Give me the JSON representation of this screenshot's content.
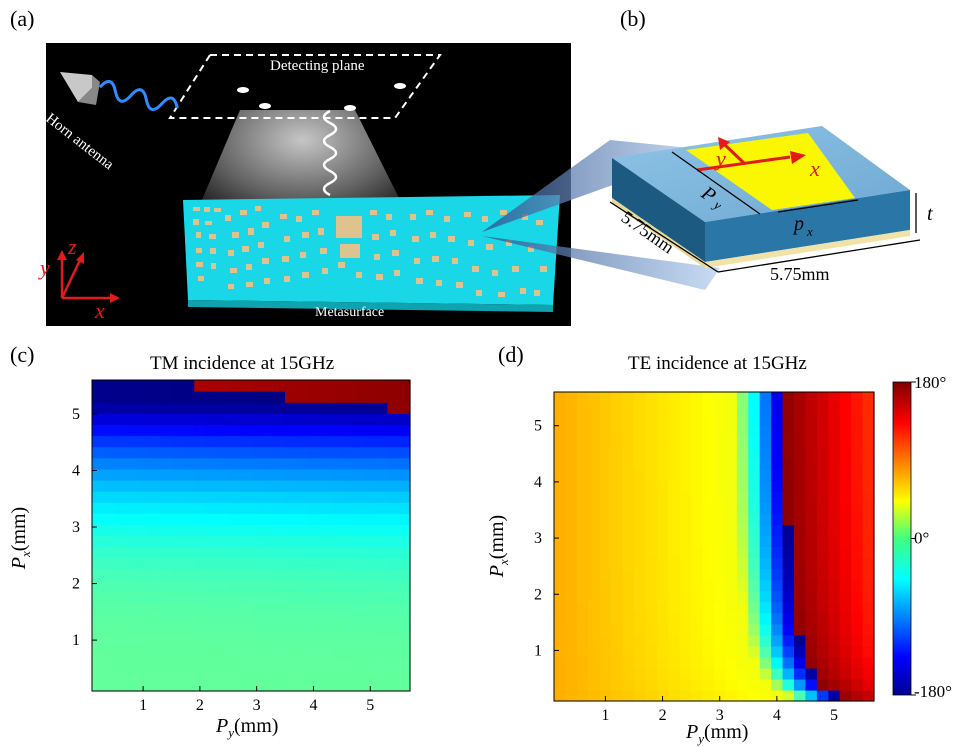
{
  "panels": {
    "a": {
      "label": "(a)",
      "detecting_plane": "Detecting plane",
      "horn_antenna": "Horn antenna",
      "metasurface": "Metasurface",
      "axes": {
        "x": "x",
        "y": "y",
        "z": "z"
      }
    },
    "b": {
      "label": "(b)",
      "py": "P",
      "py_sub": "y",
      "px": "p",
      "px_sub": "x",
      "t": "t",
      "dim_left": "5.75mm",
      "dim_right": "5.75mm",
      "axis_x": "x",
      "axis_y": "y"
    },
    "c": {
      "label": "(c)",
      "title": "TM incidence at 15GHz",
      "x_label_main": "P",
      "x_label_sub": "y",
      "x_label_unit": "(mm)",
      "y_label_main": "P",
      "y_label_sub": "x",
      "y_label_unit": "(mm)",
      "x_ticks": [
        "1",
        "2",
        "3",
        "4",
        "5"
      ],
      "y_ticks": [
        "1",
        "2",
        "3",
        "4",
        "5"
      ]
    },
    "d": {
      "label": "(d)",
      "title": "TE incidence at 15GHz",
      "x_label_main": "P",
      "x_label_sub": "y",
      "x_label_unit": "(mm)",
      "y_label_main": "P",
      "y_label_sub": "x",
      "y_label_unit": "(mm)",
      "x_ticks": [
        "1",
        "2",
        "3",
        "4",
        "5"
      ],
      "y_ticks": [
        "1",
        "2",
        "3",
        "4",
        "5"
      ],
      "colorbar_ticks": [
        "180°",
        "0°",
        "-180°"
      ]
    }
  },
  "chart_data": [
    {
      "type": "heatmap",
      "title": "TM incidence at 15GHz",
      "xlabel": "Py(mm)",
      "ylabel": "Px(mm)",
      "xlim": [
        0.1,
        5.7
      ],
      "ylim": [
        0.1,
        5.6
      ],
      "zlim": [
        -180,
        180
      ],
      "x_ticks": [
        1,
        2,
        3,
        4,
        5
      ],
      "y_ticks": [
        1,
        2,
        3,
        4,
        5
      ],
      "colormap": "jet",
      "grid": false,
      "description_points": [
        {
          "px": 0.5,
          "phase_approx": -5
        },
        {
          "px": 2.0,
          "phase_approx": -20
        },
        {
          "px": 3.5,
          "phase_approx": -55
        },
        {
          "px": 4.5,
          "phase_approx": -150
        },
        {
          "px": 5.4,
          "phase_approx": 180
        }
      ]
    },
    {
      "type": "heatmap",
      "title": "TE incidence at 15GHz",
      "xlabel": "Py(mm)",
      "ylabel": "Px(mm)",
      "xlim": [
        0.1,
        5.7
      ],
      "ylim": [
        0.1,
        5.6
      ],
      "zlim": [
        -180,
        180
      ],
      "x_ticks": [
        1,
        2,
        3,
        4,
        5
      ],
      "y_ticks": [
        1,
        2,
        3,
        4,
        5
      ],
      "colormap": "jet",
      "colorbar_ticks": [
        180,
        0,
        -180
      ],
      "grid": false,
      "description_points": [
        {
          "py": 0.5,
          "phase_approx": 75
        },
        {
          "py": 2.5,
          "phase_approx": 40
        },
        {
          "py": 3.5,
          "phase_approx": -60
        },
        {
          "py": 4.0,
          "phase_approx": -170
        },
        {
          "py": 4.5,
          "phase_approx": 165
        },
        {
          "py": 5.5,
          "phase_approx": 120
        }
      ]
    }
  ]
}
